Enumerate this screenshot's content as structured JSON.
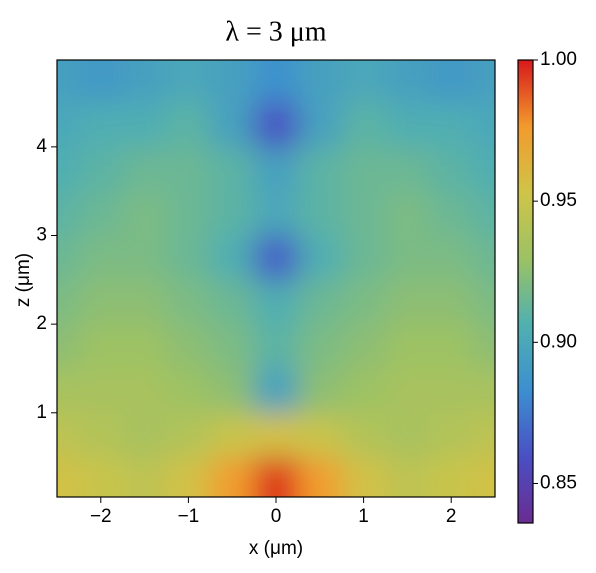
{
  "chart_data": {
    "type": "heatmap",
    "title": "λ = 3 μm",
    "xlabel": "x (μm)",
    "ylabel": "z (μm)",
    "x": [
      -2.5,
      -2,
      -1.5,
      -1,
      -0.5,
      0,
      0.5,
      1,
      1.5,
      2,
      2.5
    ],
    "y": [
      0.25,
      0.75,
      1.25,
      1.75,
      2.25,
      2.75,
      3.25,
      3.75,
      4.25,
      4.75
    ],
    "values": [
      [
        0.955,
        0.95,
        0.945,
        0.955,
        0.975,
        0.995,
        0.975,
        0.955,
        0.945,
        0.95,
        0.955
      ],
      [
        0.945,
        0.94,
        0.935,
        0.94,
        0.95,
        0.955,
        0.95,
        0.94,
        0.935,
        0.94,
        0.945
      ],
      [
        0.935,
        0.935,
        0.935,
        0.93,
        0.925,
        0.895,
        0.925,
        0.93,
        0.935,
        0.935,
        0.935
      ],
      [
        0.925,
        0.93,
        0.93,
        0.925,
        0.92,
        0.91,
        0.92,
        0.925,
        0.93,
        0.93,
        0.925
      ],
      [
        0.92,
        0.925,
        0.925,
        0.92,
        0.915,
        0.905,
        0.915,
        0.92,
        0.925,
        0.925,
        0.92
      ],
      [
        0.915,
        0.92,
        0.92,
        0.915,
        0.905,
        0.865,
        0.905,
        0.915,
        0.92,
        0.92,
        0.915
      ],
      [
        0.91,
        0.915,
        0.92,
        0.915,
        0.91,
        0.9,
        0.91,
        0.915,
        0.92,
        0.915,
        0.91
      ],
      [
        0.905,
        0.91,
        0.915,
        0.915,
        0.91,
        0.895,
        0.91,
        0.915,
        0.915,
        0.91,
        0.905
      ],
      [
        0.9,
        0.905,
        0.905,
        0.91,
        0.895,
        0.86,
        0.895,
        0.91,
        0.905,
        0.905,
        0.9
      ],
      [
        0.895,
        0.89,
        0.895,
        0.9,
        0.895,
        0.885,
        0.895,
        0.9,
        0.895,
        0.89,
        0.895
      ]
    ],
    "xlim": [
      -2.5,
      2.5
    ],
    "xticks": [
      {
        "value": -2,
        "label": "−2"
      },
      {
        "value": -1,
        "label": "−1"
      },
      0,
      1,
      2
    ],
    "ylim": [
      0.05,
      4.98
    ],
    "yticks": [
      1,
      2,
      3,
      4
    ],
    "clim": [
      0.836,
      1.0
    ],
    "cticks": [
      0.85,
      {
        "value": 0.9,
        "label": "0.90"
      },
      0.95,
      {
        "value": 1.0,
        "label": "1.00"
      }
    ],
    "colormap": [
      "#6a2c91",
      "#4a4fc4",
      "#3c8fd0",
      "#50b0b0",
      "#9cc264",
      "#cfc448",
      "#f39a2c",
      "#d7191c"
    ]
  }
}
